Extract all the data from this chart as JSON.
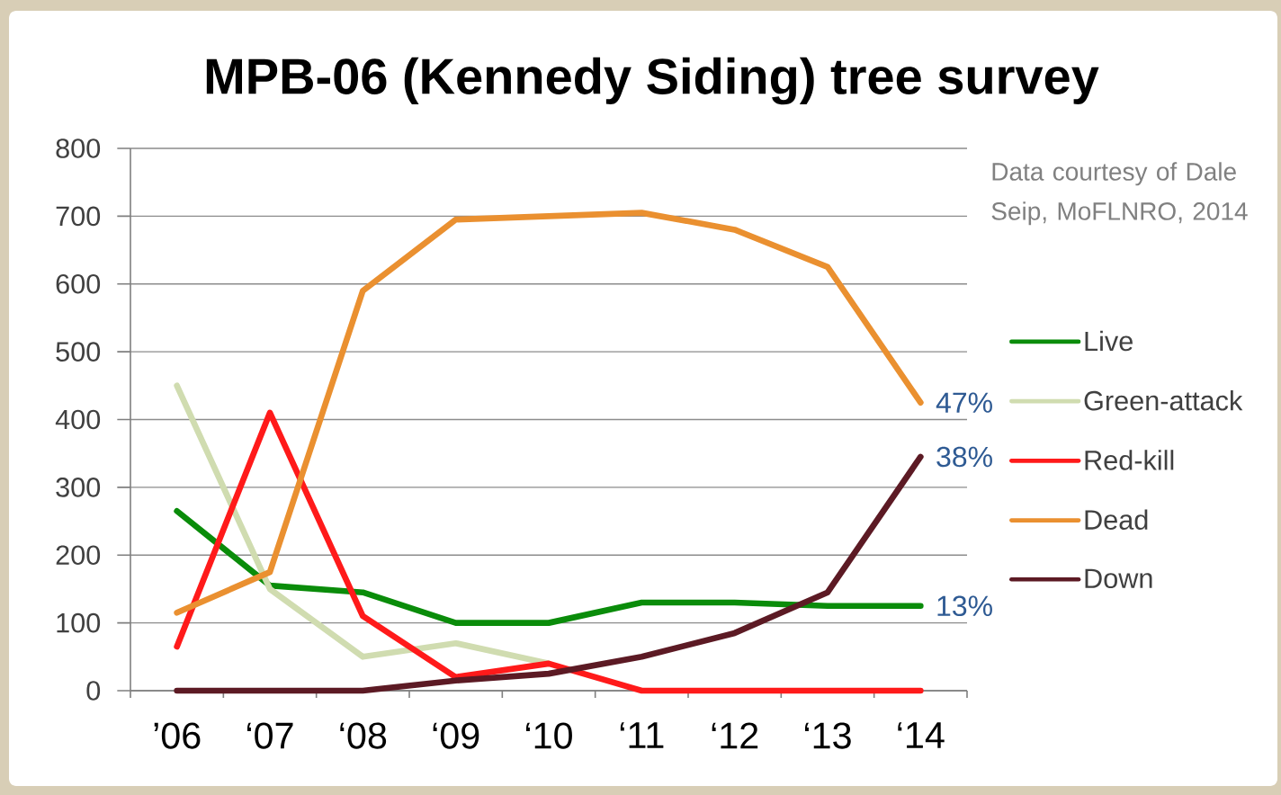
{
  "chart_data": {
    "type": "line",
    "title": "MPB-06 (Kennedy Siding) tree survey",
    "categories": [
      "’06",
      "‘07",
      "‘08",
      "‘09",
      "‘10",
      "‘11",
      "‘12",
      "‘13",
      "‘14"
    ],
    "series": [
      {
        "name": "Live",
        "color": "#0a8c0a",
        "values": [
          265,
          155,
          145,
          100,
          100,
          130,
          130,
          125,
          125
        ]
      },
      {
        "name": "Green-attack",
        "color": "#d0dcb0",
        "values": [
          450,
          150,
          50,
          70,
          40,
          null,
          null,
          null,
          null
        ]
      },
      {
        "name": "Red-kill",
        "color": "#ff1a1a",
        "values": [
          65,
          410,
          110,
          20,
          40,
          0,
          0,
          0,
          0
        ]
      },
      {
        "name": "Dead",
        "color": "#ea9030",
        "values": [
          115,
          175,
          590,
          695,
          700,
          705,
          680,
          625,
          425
        ]
      },
      {
        "name": "Down",
        "color": "#5c1a24",
        "values": [
          0,
          0,
          0,
          15,
          25,
          50,
          85,
          145,
          345
        ]
      }
    ],
    "ylim": [
      0,
      800
    ],
    "yticks": [
      0,
      100,
      200,
      300,
      400,
      500,
      600,
      700,
      800
    ],
    "grid": "y",
    "legend": "right",
    "line_style": "solid",
    "annotations": [
      "Data courtesy of Dale Seip, MoFLNRO, 2014",
      {
        "text": "47%",
        "x": "‘14",
        "y": 425
      },
      {
        "text": "38%",
        "x": "‘14",
        "y": 345
      },
      {
        "text": "13%",
        "x": "‘14",
        "y": 125
      }
    ]
  }
}
